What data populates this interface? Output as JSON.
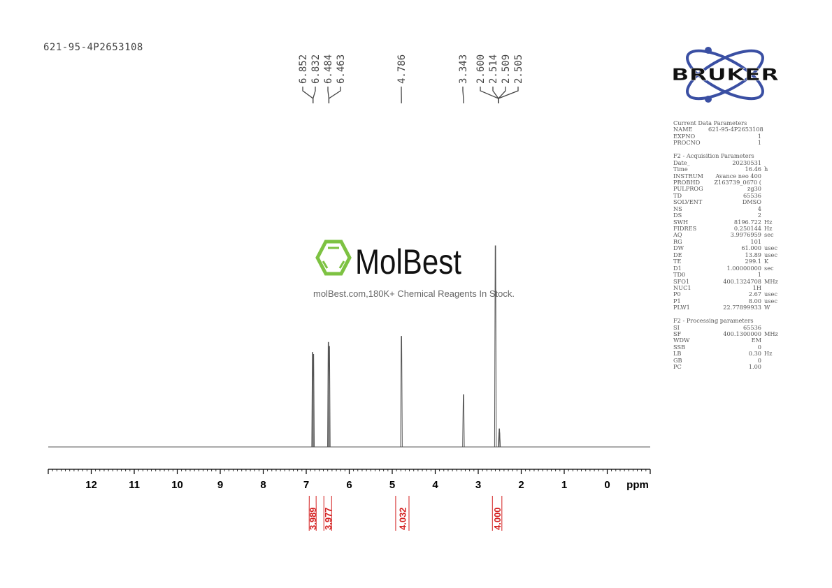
{
  "sample_name": "621-95-4P2653108",
  "logo": {
    "brand": "BRUKER",
    "brand_color": "#3a4fa3"
  },
  "watermark": {
    "brand": "MolBest",
    "tagline": "molBest.com,180K+ Chemical Reagents In Stock.",
    "color": "#7dc242"
  },
  "parameters": {
    "sections": [
      {
        "title": "Current Data Parameters",
        "rows": [
          [
            "NAME",
            "621-95-4P2653108",
            ""
          ],
          [
            "EXPNO",
            "1",
            ""
          ],
          [
            "PROCNO",
            "1",
            ""
          ]
        ]
      },
      {
        "title": "F2 - Acquisition Parameters",
        "rows": [
          [
            "Date_",
            "20230531",
            ""
          ],
          [
            "Time",
            "16.46",
            "h"
          ],
          [
            "INSTRUM",
            "Avance neo 400",
            ""
          ],
          [
            "PROBHD",
            "Z163739_0670 (",
            ""
          ],
          [
            "PULPROG",
            "zg30",
            ""
          ],
          [
            "TD",
            "65536",
            ""
          ],
          [
            "SOLVENT",
            "DMSO",
            ""
          ],
          [
            "NS",
            "4",
            ""
          ],
          [
            "DS",
            "2",
            ""
          ],
          [
            "SWH",
            "8196.722",
            "Hz"
          ],
          [
            "FIDRES",
            "0.250144",
            "Hz"
          ],
          [
            "AQ",
            "3.9976959",
            "sec"
          ],
          [
            "RG",
            "101",
            ""
          ],
          [
            "DW",
            "61.000",
            "usec"
          ],
          [
            "DE",
            "13.89",
            "usec"
          ],
          [
            "TE",
            "299.1",
            "K"
          ],
          [
            "D1",
            "1.00000000",
            "sec"
          ],
          [
            "TD0",
            "1",
            ""
          ],
          [
            "SFO1",
            "400.1324708",
            "MHz"
          ],
          [
            "NUC1",
            "1H",
            ""
          ],
          [
            "P0",
            "2.67",
            "usec"
          ],
          [
            "P1",
            "8.00",
            "usec"
          ],
          [
            "PLW1",
            "22.77899933",
            "W"
          ]
        ]
      },
      {
        "title": "F2 - Processing parameters",
        "rows": [
          [
            "SI",
            "65536",
            ""
          ],
          [
            "SF",
            "400.1300000",
            "MHz"
          ],
          [
            "WDW",
            "EM",
            ""
          ],
          [
            "SSB",
            "0",
            ""
          ],
          [
            "LB",
            "0.30",
            "Hz"
          ],
          [
            "GB",
            "0",
            ""
          ],
          [
            "PC",
            "1.00",
            ""
          ]
        ]
      }
    ]
  },
  "chart_data": {
    "type": "line",
    "xlabel": "ppm",
    "xlim": [
      13,
      -1
    ],
    "x_reversed": true,
    "xticks": [
      12,
      11,
      10,
      9,
      8,
      7,
      6,
      5,
      4,
      3,
      2,
      1,
      0
    ],
    "line_color": "#555555",
    "peaks": [
      {
        "ppm": 6.852,
        "intensity": 0.47
      },
      {
        "ppm": 6.832,
        "intensity": 0.46
      },
      {
        "ppm": 6.484,
        "intensity": 0.52
      },
      {
        "ppm": 6.463,
        "intensity": 0.5
      },
      {
        "ppm": 4.786,
        "intensity": 0.55
      },
      {
        "ppm": 3.343,
        "intensity": 0.26
      },
      {
        "ppm": 2.6,
        "intensity": 1.0
      },
      {
        "ppm": 2.514,
        "intensity": 0.07
      },
      {
        "ppm": 2.509,
        "intensity": 0.09
      },
      {
        "ppm": 2.505,
        "intensity": 0.07
      }
    ],
    "peak_labels": [
      {
        "text": "6.852",
        "group_ppm": 6.842
      },
      {
        "text": "6.832",
        "group_ppm": 6.842
      },
      {
        "text": "6.484",
        "group_ppm": 6.473
      },
      {
        "text": "6.463",
        "group_ppm": 6.473
      },
      {
        "text": "4.786",
        "group_ppm": 4.786
      },
      {
        "text": "3.343",
        "group_ppm": 3.343
      },
      {
        "text": "2.600",
        "group_ppm": 2.53
      },
      {
        "text": "2.514",
        "group_ppm": 2.53
      },
      {
        "text": "2.509",
        "group_ppm": 2.53
      },
      {
        "text": "2.505",
        "group_ppm": 2.53
      }
    ],
    "integrals": [
      {
        "from": 6.93,
        "to": 6.77,
        "value": "3.989"
      },
      {
        "from": 6.59,
        "to": 6.41,
        "value": "3.977"
      },
      {
        "from": 4.92,
        "to": 4.61,
        "value": "4.032"
      },
      {
        "from": 2.67,
        "to": 2.45,
        "value": "4.000"
      }
    ],
    "integral_color": "#d42020"
  }
}
